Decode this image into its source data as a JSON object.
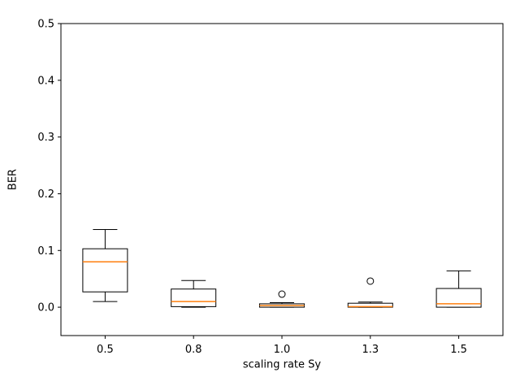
{
  "chart_data": {
    "type": "boxplot",
    "title": "",
    "xlabel": "scaling rate Sy",
    "ylabel": "BER",
    "categories": [
      "0.5",
      "0.8",
      "1.0",
      "1.3",
      "1.5"
    ],
    "ytick_labels": [
      "0.0",
      "0.1",
      "0.2",
      "0.3",
      "0.4",
      "0.5"
    ],
    "ytick_values": [
      0.0,
      0.1,
      0.2,
      0.3,
      0.4,
      0.5
    ],
    "ylim": [
      -0.05,
      0.5
    ],
    "grid": false,
    "legend": null,
    "boxes": [
      {
        "label": "0.5",
        "whisker_low": 0.01,
        "q1": 0.027,
        "median": 0.08,
        "q3": 0.103,
        "whisker_high": 0.137,
        "outliers": []
      },
      {
        "label": "0.8",
        "whisker_low": 0.0,
        "q1": 0.001,
        "median": 0.01,
        "q3": 0.032,
        "whisker_high": 0.047,
        "outliers": []
      },
      {
        "label": "1.0",
        "whisker_low": 0.0,
        "q1": 0.0,
        "median": 0.003,
        "q3": 0.006,
        "whisker_high": 0.008,
        "outliers": [
          0.023
        ]
      },
      {
        "label": "1.3",
        "whisker_low": 0.0,
        "q1": 0.0,
        "median": 0.001,
        "q3": 0.007,
        "whisker_high": 0.009,
        "outliers": [
          0.046
        ]
      },
      {
        "label": "1.5",
        "whisker_low": 0.0,
        "q1": 0.0,
        "median": 0.006,
        "q3": 0.033,
        "whisker_high": 0.064,
        "outliers": []
      }
    ],
    "colors": {
      "median": "#ff7f0e",
      "box_edge": "#000000",
      "spine": "#000000",
      "text": "#000000",
      "background": "#ffffff"
    }
  }
}
